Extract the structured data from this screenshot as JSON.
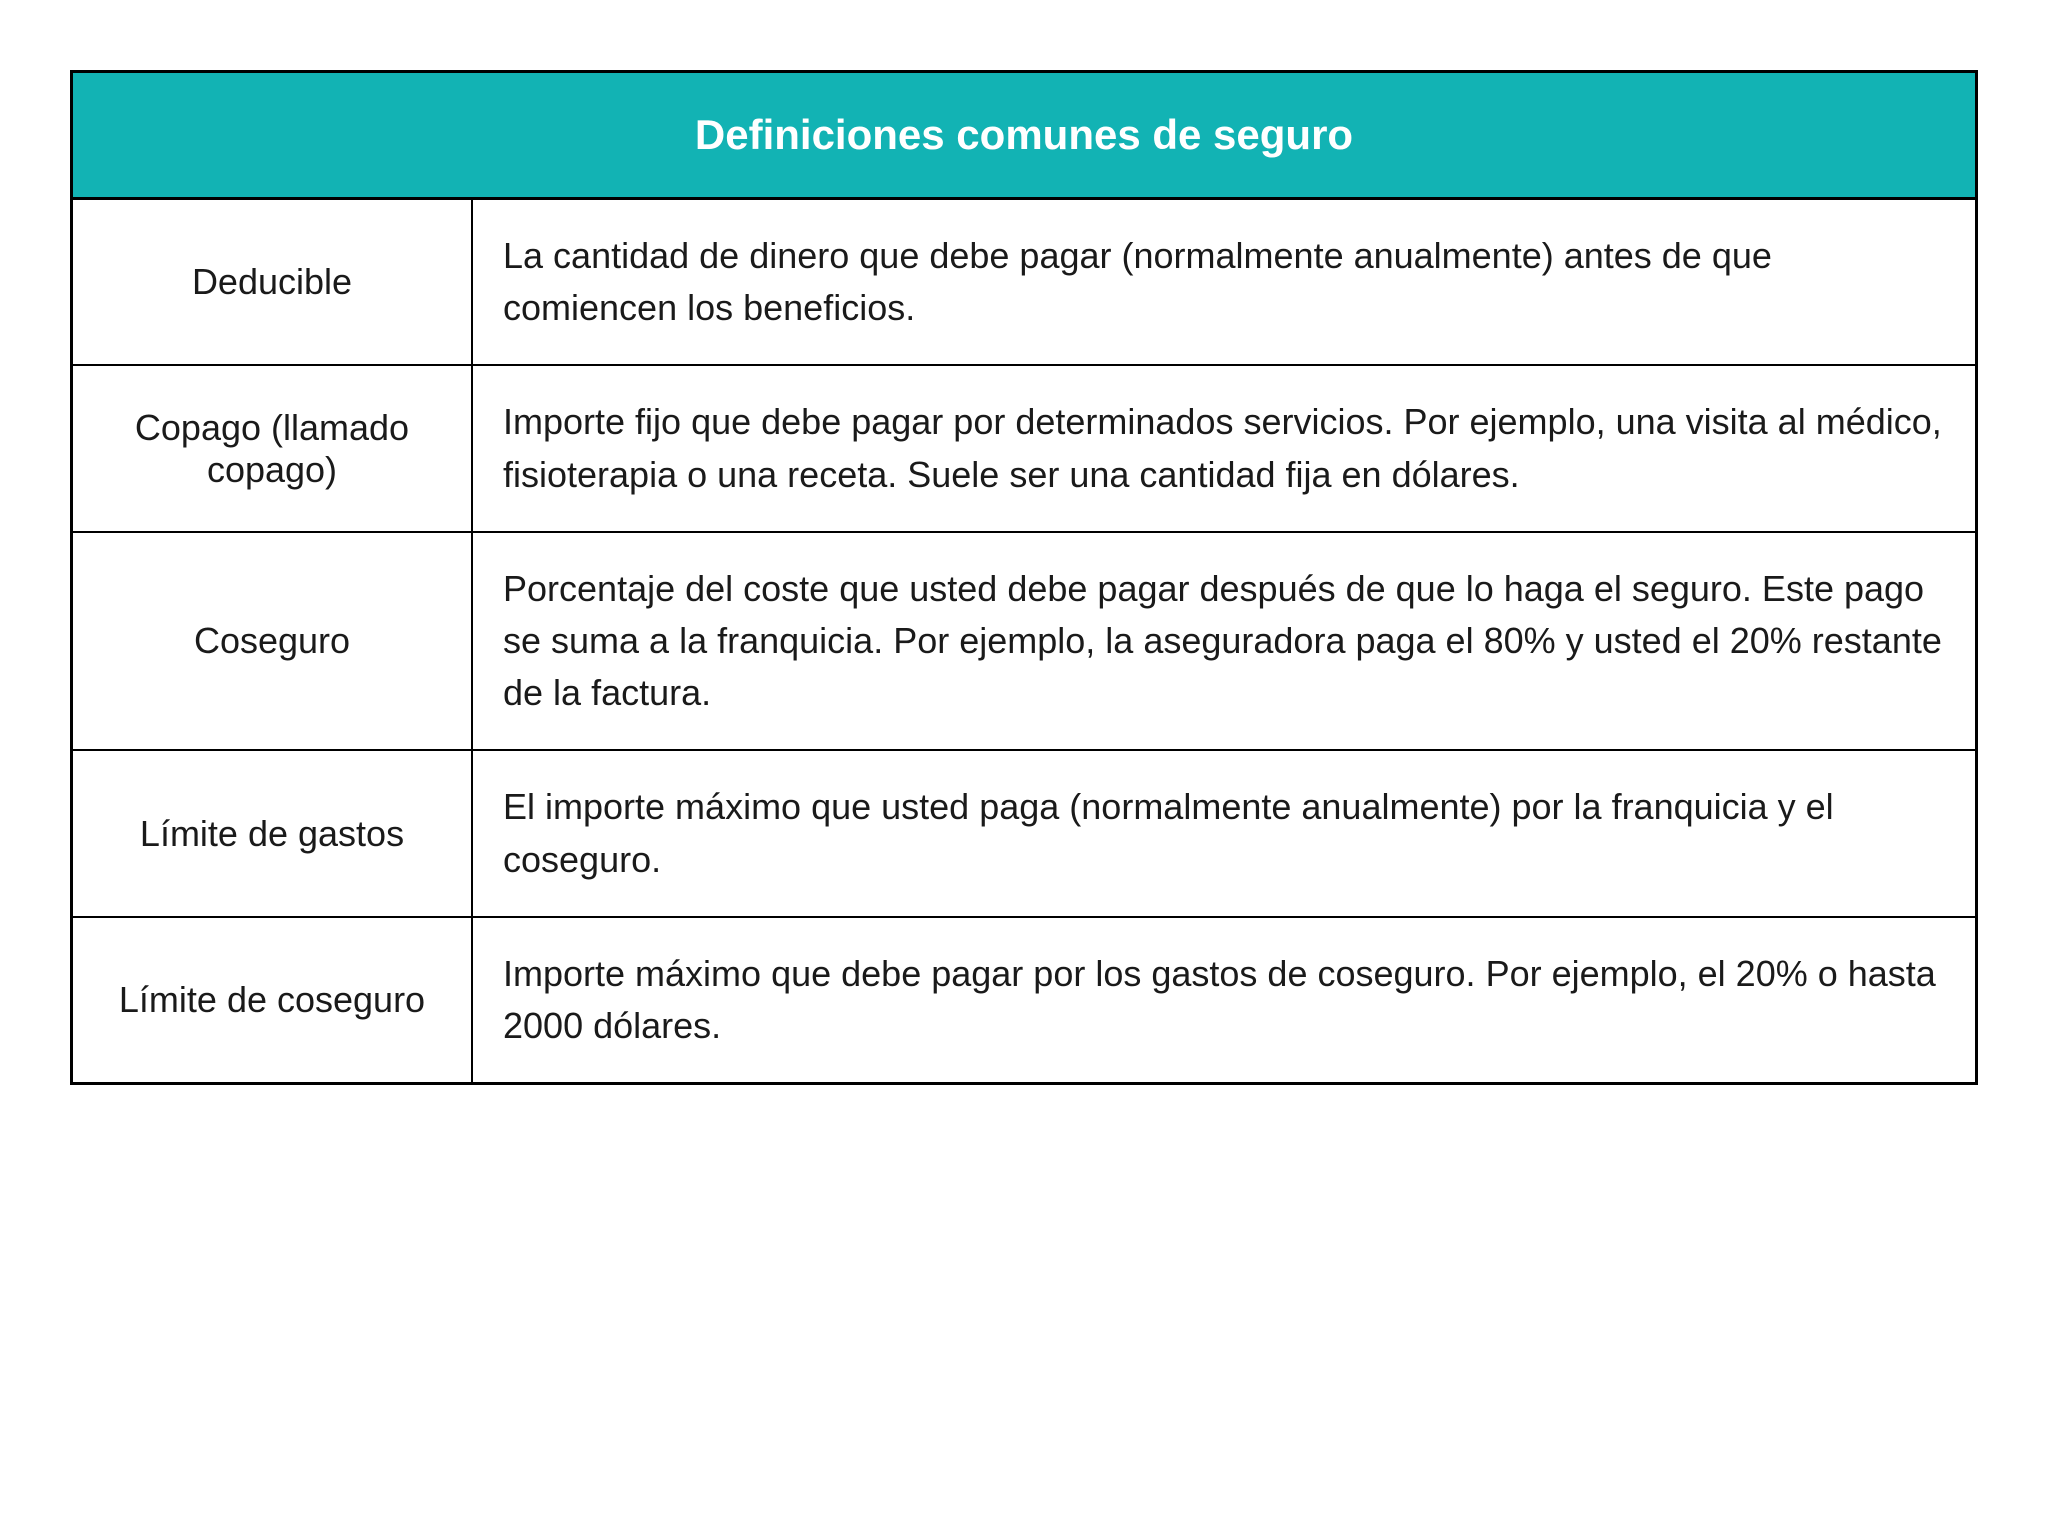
{
  "table": {
    "header_title": "Definiciones comunes de seguro",
    "header_bg_color": "#12b3b4",
    "header_text_color": "#ffffff",
    "border_color": "#000000",
    "background_color": "#ffffff",
    "text_color": "#1a1a1a",
    "header_fontsize": 42,
    "cell_fontsize": 36,
    "term_column_width": 400,
    "rows": [
      {
        "term": "Deducible",
        "definition": "La cantidad de dinero que debe pagar (normalmente anualmente) antes de que comiencen los beneficios."
      },
      {
        "term": "Copago (llamado copago)",
        "definition": "Importe fijo que debe pagar por determinados servicios. Por ejemplo, una visita al médico, fisioterapia o una receta. Suele ser una cantidad fija en dólares."
      },
      {
        "term": "Coseguro",
        "definition": "Porcentaje del coste que usted debe pagar después de que lo haga el seguro. Este pago se suma a la franquicia. Por ejemplo, la aseguradora paga el 80% y usted el 20% restante de la factura."
      },
      {
        "term": "Límite de gastos",
        "definition": "El importe máximo que usted paga (normalmente anualmente) por la franquicia y el coseguro."
      },
      {
        "term": "Límite de coseguro",
        "definition": "Importe máximo que debe pagar por los gastos de coseguro. Por ejemplo, el 20% o hasta 2000 dólares."
      }
    ]
  }
}
